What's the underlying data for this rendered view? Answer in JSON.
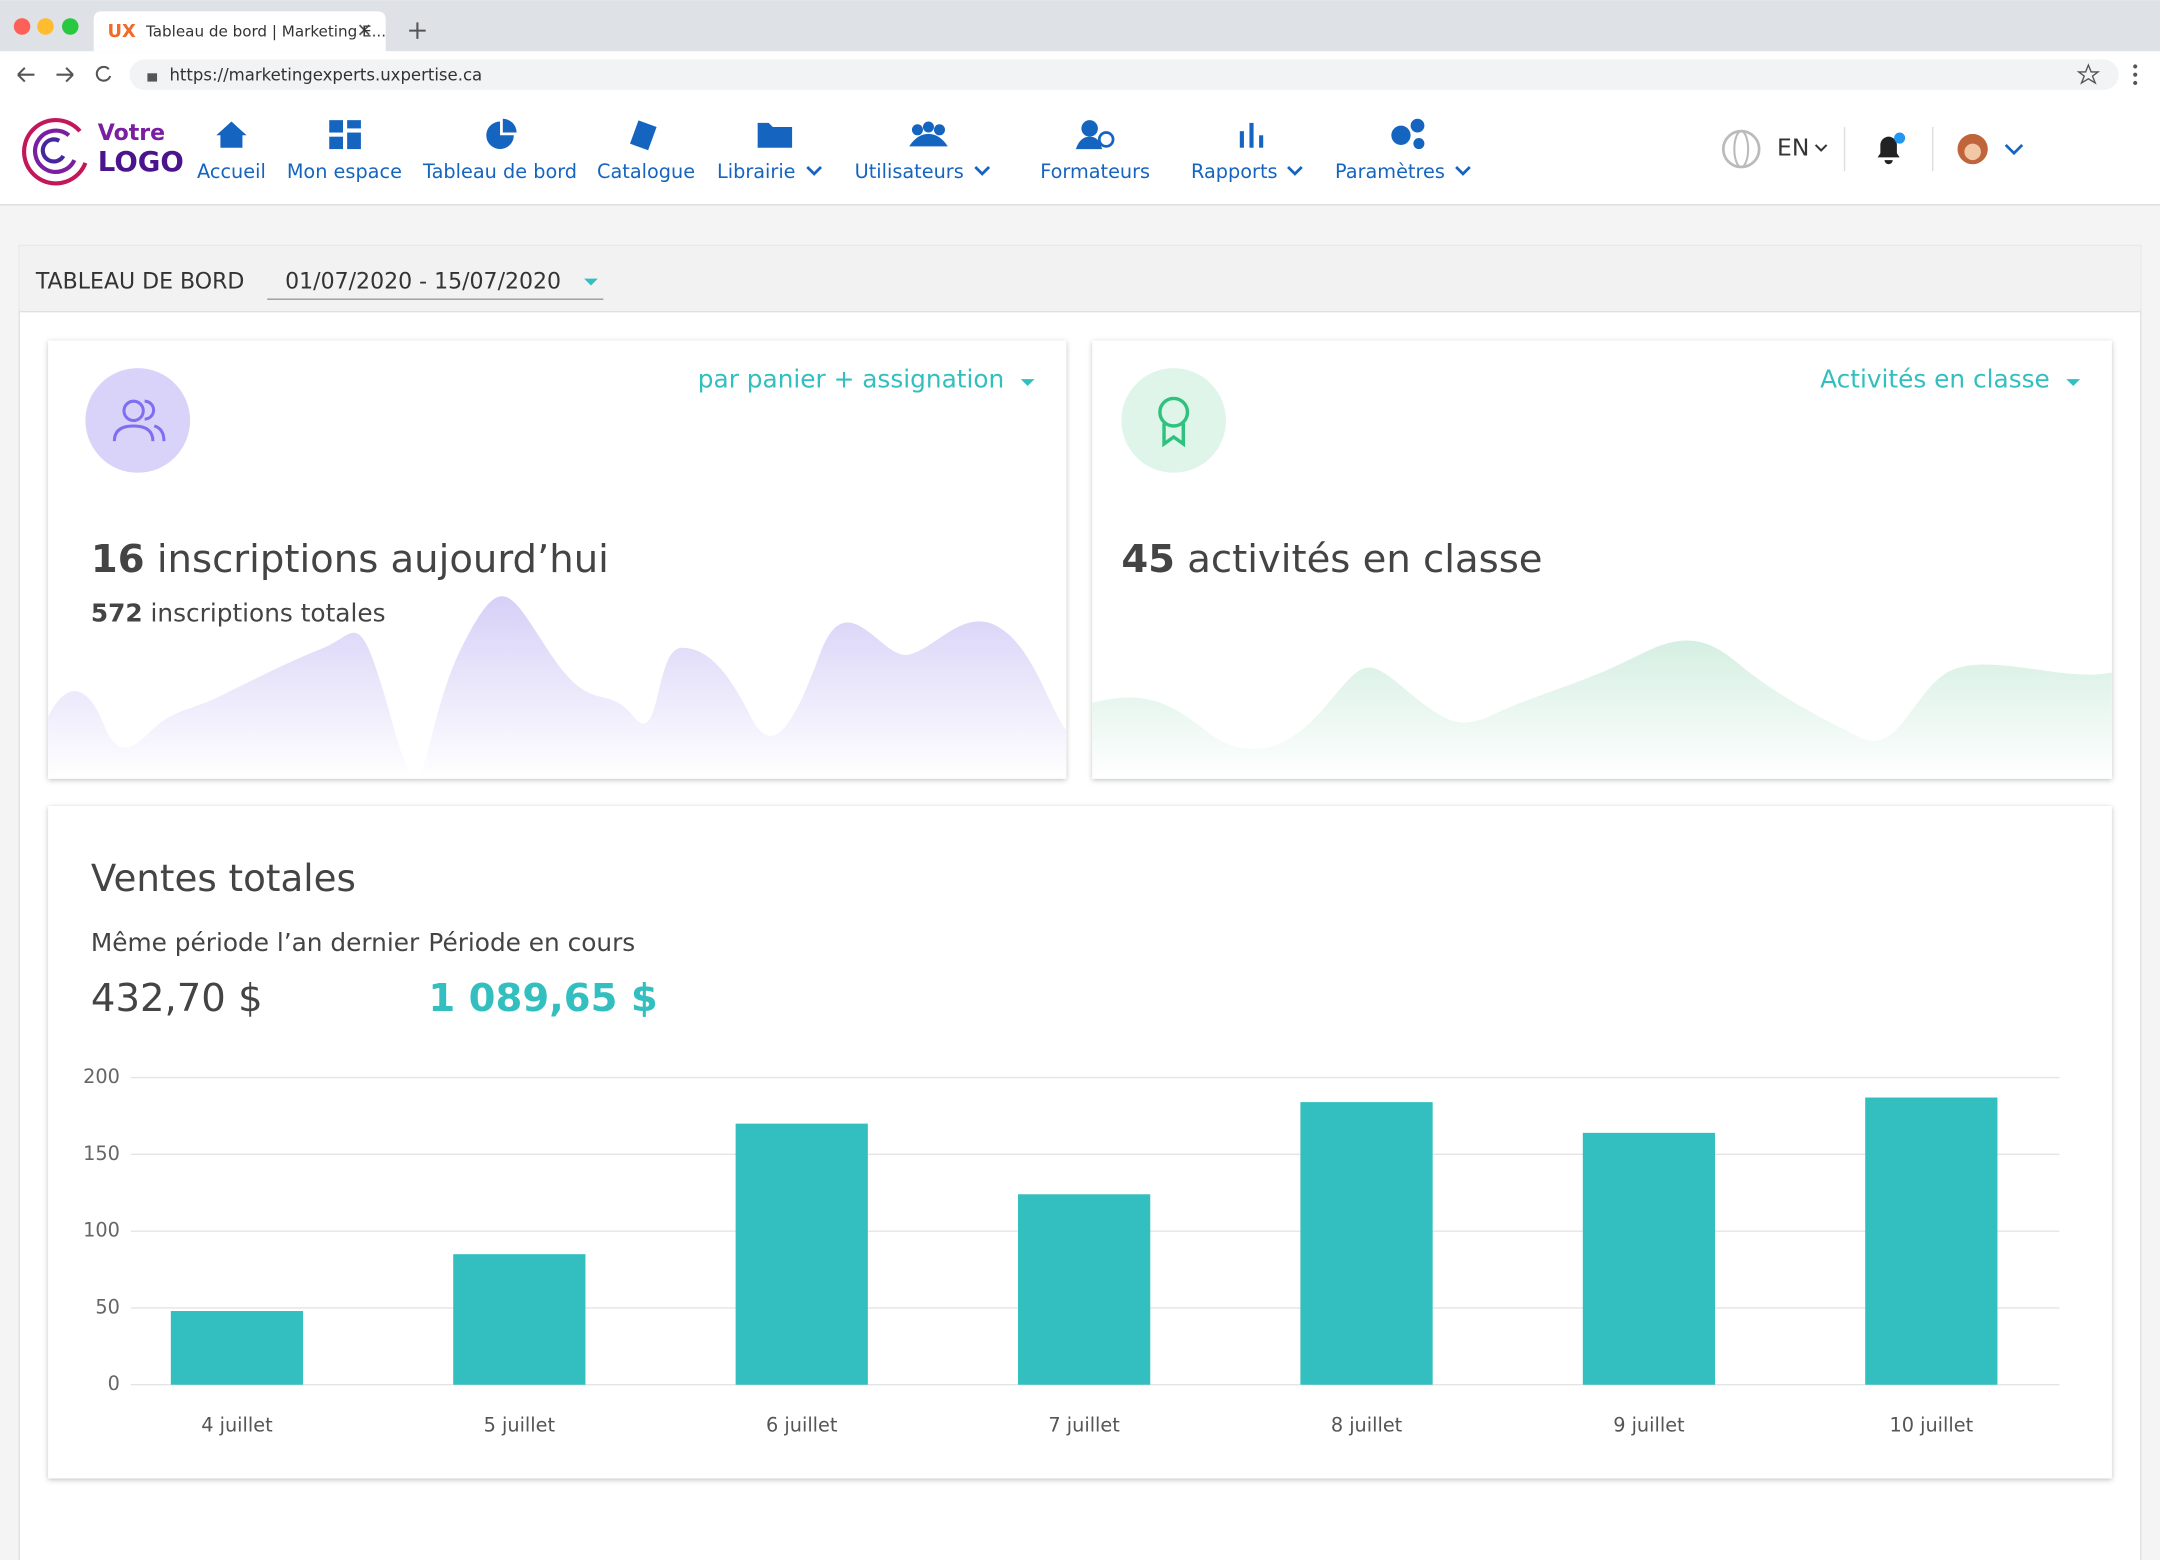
{
  "browser": {
    "tab_title": "Tableau de bord | Marketing E...",
    "url": "https://marketingexperts.uxpertise.ca"
  },
  "logo": {
    "line1": "Votre",
    "line2": "LOGO"
  },
  "nav": [
    "Accueil",
    "Mon espace",
    "Tableau de bord",
    "Catalogue",
    "Librairie",
    "Utilisateurs",
    "Formateurs",
    "Rapports",
    "Paramètres"
  ],
  "language": "EN",
  "header": {
    "title": "TABLEAU DE BORD",
    "date_range": "01/07/2020 - 15/07/2020"
  },
  "card_inscriptions": {
    "filter": "par panier + assignation",
    "today_count": "16",
    "today_label": " inscriptions aujourd’hui",
    "total_count": "572",
    "total_label": " inscriptions totales"
  },
  "card_activities": {
    "filter": "Activités en classe",
    "count": "45",
    "label": " activités en classe"
  },
  "sales": {
    "title": "Ventes totales",
    "last_year_label": "Même période l’an dernier",
    "last_year_value": "432,70 $",
    "current_label": "Période en cours",
    "current_value": "1 089,65 $"
  },
  "chart_data": {
    "type": "bar",
    "categories": [
      "4 juillet",
      "5 juillet",
      "6 juillet",
      "7 juillet",
      "8 juillet",
      "9 juillet",
      "10 juillet"
    ],
    "values": [
      48,
      85,
      170,
      124,
      184,
      164,
      187
    ],
    "color": "#33bfbf",
    "ylim": [
      0,
      200
    ],
    "yticks": [
      0,
      50,
      100,
      150,
      200
    ],
    "grid": true
  }
}
